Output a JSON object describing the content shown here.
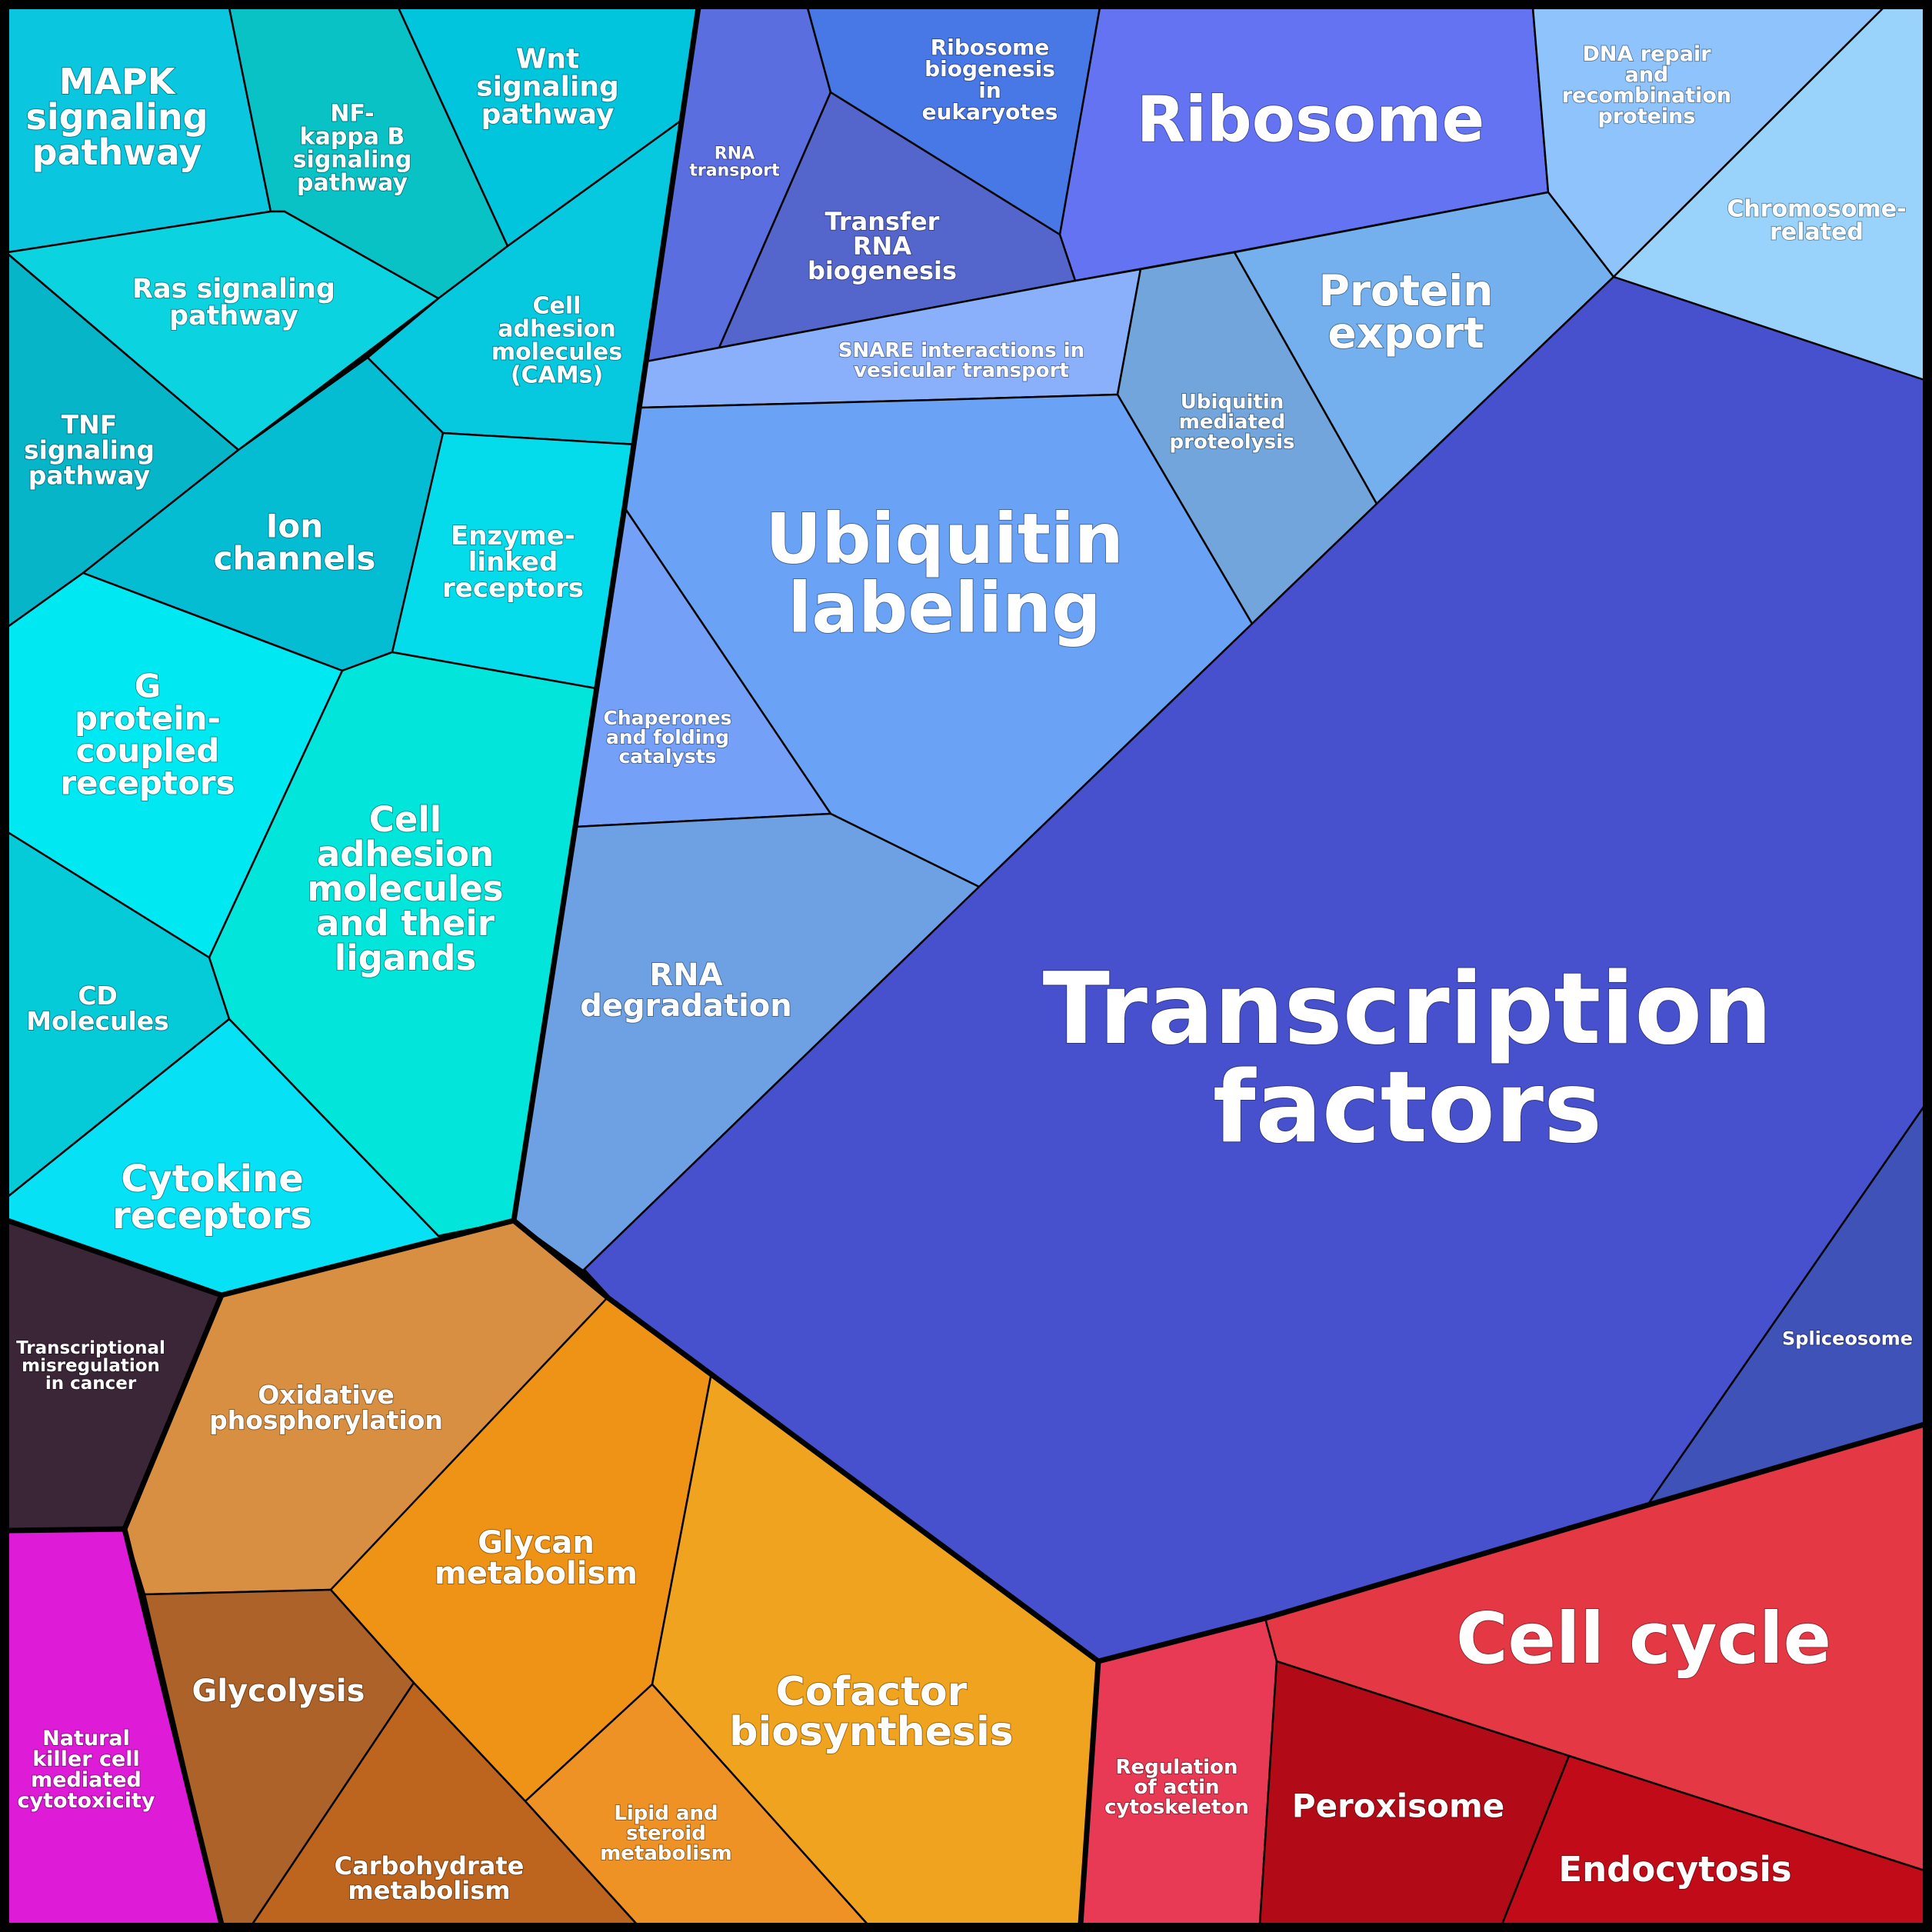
{
  "cells": [
    {
      "id": "mapk",
      "label": [
        "MAPK",
        "signaling",
        "pathway"
      ],
      "color": "#0AC6DE"
    },
    {
      "id": "nfkb",
      "label": [
        "NF-",
        "kappa B",
        "signaling",
        "pathway"
      ],
      "color": "#09C2C6"
    },
    {
      "id": "wnt",
      "label": [
        "Wnt",
        "signaling",
        "pathway"
      ],
      "color": "#00C5DC"
    },
    {
      "id": "ras",
      "label": [
        "Ras signaling",
        "pathway"
      ],
      "color": "#0BD4E0"
    },
    {
      "id": "cams",
      "label": [
        "Cell",
        "adhesion",
        "molecules",
        "(CAMs)"
      ],
      "color": "#06C9E0"
    },
    {
      "id": "tnf",
      "label": [
        "TNF",
        "signaling",
        "pathway"
      ],
      "color": "#07B5C9"
    },
    {
      "id": "ion",
      "label": [
        "Ion",
        "channels"
      ],
      "color": "#05BDD2"
    },
    {
      "id": "enzyme",
      "label": [
        "Enzyme-",
        "linked",
        "receptors"
      ],
      "color": "#04DCEC"
    },
    {
      "id": "gpcr",
      "label": [
        "G",
        "protein-",
        "coupled",
        "receptors"
      ],
      "color": "#00E9F2"
    },
    {
      "id": "cellAdhLig",
      "label": [
        "Cell",
        "adhesion",
        "molecules",
        "and their",
        "ligands"
      ],
      "color": "#02E5DB"
    },
    {
      "id": "cd",
      "label": [
        "CD",
        "Molecules"
      ],
      "color": "#05CAD8"
    },
    {
      "id": "cytokine",
      "label": [
        "Cytokine",
        "receptors"
      ],
      "color": "#06E1F5"
    },
    {
      "id": "rnaTransport",
      "label": [
        "RNA",
        "transport"
      ],
      "color": "#5A6EE0"
    },
    {
      "id": "riboBio",
      "label": [
        "Ribosome",
        "biogenesis",
        "in",
        "eukaryotes"
      ],
      "color": "#4877E6"
    },
    {
      "id": "ribosome",
      "label": [
        "Ribosome"
      ],
      "color": "#6473F1"
    },
    {
      "id": "tRNA",
      "label": [
        "Transfer",
        "RNA",
        "biogenesis"
      ],
      "color": "#5466CC"
    },
    {
      "id": "dnaRepair",
      "label": [
        "DNA repair",
        "and",
        "recombination",
        "proteins"
      ],
      "color": "#8FC3FB"
    },
    {
      "id": "chromosome",
      "label": [
        "Chromosome-",
        "related"
      ],
      "color": "#99D3FB"
    },
    {
      "id": "snare",
      "label": [
        "SNARE interactions in",
        "vesicular transport"
      ],
      "color": "#8BB0FB"
    },
    {
      "id": "ubiqProt",
      "label": [
        "Ubiquitin",
        "mediated",
        "proteolysis"
      ],
      "color": "#72A5DC"
    },
    {
      "id": "protExport",
      "label": [
        "Protein",
        "export"
      ],
      "color": "#74B0EE"
    },
    {
      "id": "ubiqLabel",
      "label": [
        "Ubiquitin",
        "labeling"
      ],
      "color": "#6AA2F5"
    },
    {
      "id": "chaperones",
      "label": [
        "Chaperones",
        "and folding",
        "catalysts"
      ],
      "color": "#74A0F8"
    },
    {
      "id": "rnaDeg",
      "label": [
        "RNA",
        "degradation"
      ],
      "color": "#6EA1E3"
    },
    {
      "id": "tf",
      "label": [
        "Transcription",
        "factors"
      ],
      "color": "#4751CD"
    },
    {
      "id": "spliceosome",
      "label": [
        "Spliceosome"
      ],
      "color": "#3F52B8"
    },
    {
      "id": "transMis",
      "label": [
        "Transcriptional",
        "misregulation",
        "in cancer"
      ],
      "color": "#3B2638"
    },
    {
      "id": "oxphos",
      "label": [
        "Oxidative",
        "phosphorylation"
      ],
      "color": "#D98F42"
    },
    {
      "id": "glycan",
      "label": [
        "Glycan",
        "metabolism"
      ],
      "color": "#EE9316"
    },
    {
      "id": "cofactor",
      "label": [
        "Cofactor",
        "biosynthesis"
      ],
      "color": "#EFA31E"
    },
    {
      "id": "lipid",
      "label": [
        "Lipid and",
        "steroid",
        "metabolism"
      ],
      "color": "#EE9225"
    },
    {
      "id": "nk",
      "label": [
        "Natural",
        "killer cell",
        "mediated",
        "cytotoxicity"
      ],
      "color": "#DE1BD6"
    },
    {
      "id": "glycolysis",
      "label": [
        "Glycolysis"
      ],
      "color": "#AC6229"
    },
    {
      "id": "carb",
      "label": [
        "Carbohydrate",
        "metabolism"
      ],
      "color": "#BD651F"
    },
    {
      "id": "actin",
      "label": [
        "Regulation",
        "of actin",
        "cytoskeleton"
      ],
      "color": "#E83A55"
    },
    {
      "id": "cellcycle",
      "label": [
        "Cell cycle"
      ],
      "color": "#E43845"
    },
    {
      "id": "peroxisome",
      "label": [
        "Peroxisome"
      ],
      "color": "#B30A17"
    },
    {
      "id": "endocytosis",
      "label": [
        "Endocytosis"
      ],
      "color": "#C10B18"
    }
  ]
}
